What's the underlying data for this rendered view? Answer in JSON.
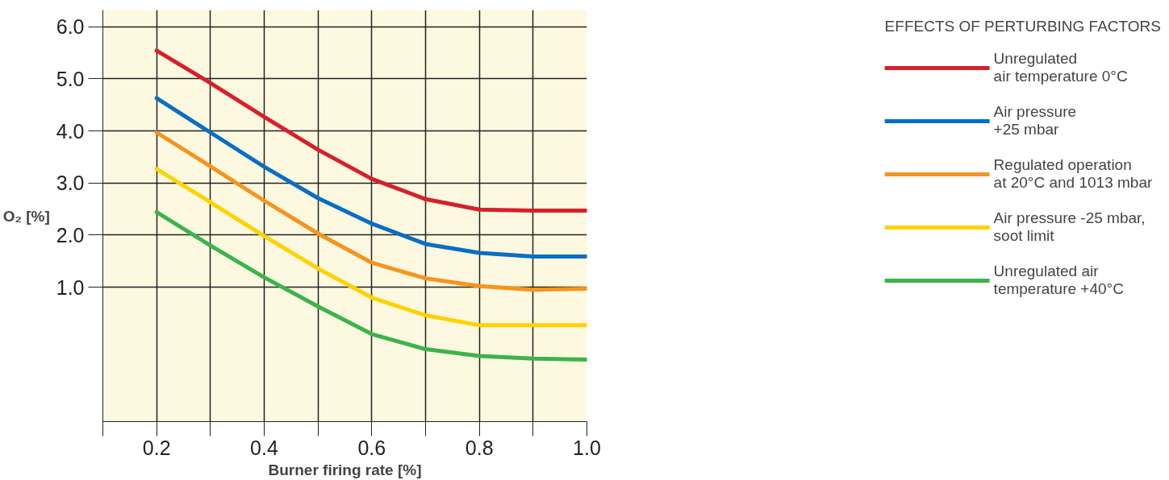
{
  "chart_data": {
    "type": "line",
    "xlabel": "Burner firing rate [%]",
    "ylabel": "O₂ [%]",
    "legend_title": "EFFECTS OF PERTURBING FACTORS",
    "x": [
      0.2,
      0.3,
      0.4,
      0.5,
      0.6,
      0.7,
      0.8,
      0.9,
      1.0
    ],
    "series": [
      {
        "name": "Unregulated\nair temperature 0°C",
        "color": "#d7202a",
        "values": [
          5.54,
          4.92,
          4.27,
          3.64,
          3.08,
          2.69,
          2.49,
          2.47,
          2.47
        ]
      },
      {
        "name": "Air pressure\n+25 mbar",
        "color": "#0a6fc2",
        "values": [
          4.63,
          3.97,
          3.31,
          2.71,
          2.22,
          1.83,
          1.66,
          1.59,
          1.59
        ]
      },
      {
        "name": "Regulated operation\nat 20°C and 1013 mbar",
        "color": "#f7941d",
        "values": [
          3.97,
          3.32,
          2.66,
          2.03,
          1.47,
          1.17,
          1.02,
          0.95,
          0.97
        ]
      },
      {
        "name": "Air pressure -25 mbar,\nsoot limit",
        "color": "#ffd200",
        "values": [
          3.27,
          2.63,
          1.98,
          1.36,
          0.8,
          0.46,
          0.27,
          0.27,
          0.27
        ]
      },
      {
        "name": "Unregulated air\ntemperature +40°C",
        "color": "#3cb44a",
        "values": [
          2.44,
          1.8,
          1.19,
          0.63,
          0.1,
          -0.19,
          -0.32,
          -0.37,
          -0.39
        ]
      }
    ],
    "xlim": [
      0.1,
      1.0
    ],
    "ylim": [
      -1.58,
      6.32
    ],
    "xticks": [
      {
        "value": 0.1,
        "label": null
      },
      {
        "value": 0.2,
        "label": "0.2"
      },
      {
        "value": 0.3,
        "label": null
      },
      {
        "value": 0.4,
        "label": "0.4"
      },
      {
        "value": 0.5,
        "label": null
      },
      {
        "value": 0.6,
        "label": "0.6"
      },
      {
        "value": 0.7,
        "label": null
      },
      {
        "value": 0.8,
        "label": "0.8"
      },
      {
        "value": 0.9,
        "label": null
      },
      {
        "value": 1.0,
        "label": "1.0"
      }
    ],
    "yticks": [
      {
        "value": 1,
        "label": "1.0"
      },
      {
        "value": 2,
        "label": "2.0"
      },
      {
        "value": 3,
        "label": "3.0"
      },
      {
        "value": 4,
        "label": "4.0"
      },
      {
        "value": 5,
        "label": "5.0"
      },
      {
        "value": 6,
        "label": "6.0"
      }
    ],
    "grid": true,
    "legend": "right",
    "marker": "none",
    "line_style": "solid"
  }
}
